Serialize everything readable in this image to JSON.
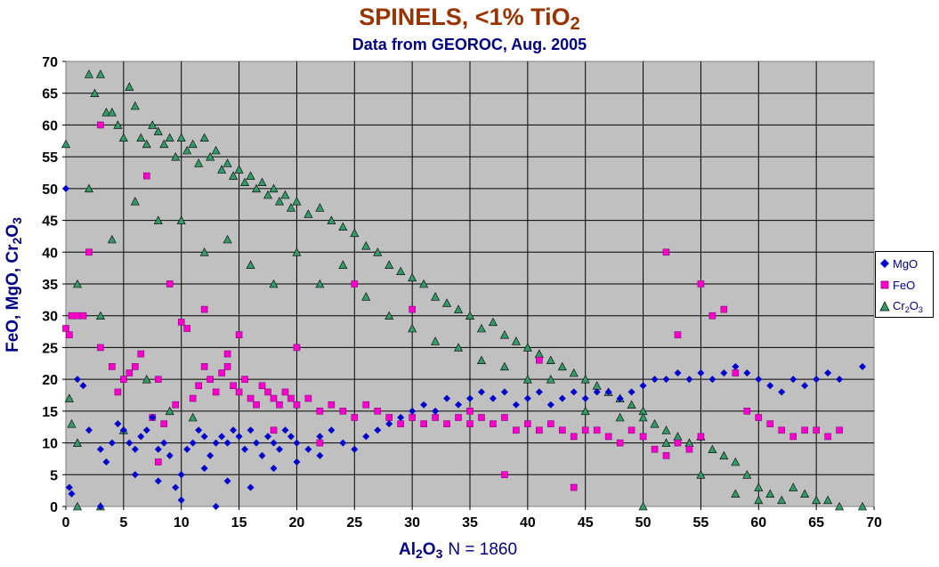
{
  "chart_data": {
    "type": "scatter",
    "title": "SPINELS, <1% TiO",
    "title_sub": "2",
    "subtitle": "Data from GEOROC, Aug. 2005",
    "xlabel_main": "Al",
    "xlabel_sub1": "2",
    "xlabel_o": "O",
    "xlabel_sub2": "3",
    "xlabel_n": "N = 1860",
    "ylabel_main": "FeO, MgO, Cr",
    "ylabel_sub1": "2",
    "ylabel_o": "O",
    "ylabel_sub2": "3",
    "xlim": [
      0,
      70
    ],
    "ylim": [
      0,
      70
    ],
    "x_ticks": [
      "0",
      "5",
      "10",
      "15",
      "20",
      "25",
      "30",
      "35",
      "40",
      "45",
      "50",
      "55",
      "60",
      "65",
      "70"
    ],
    "y_ticks": [
      "0",
      "5",
      "10",
      "15",
      "20",
      "25",
      "30",
      "35",
      "40",
      "45",
      "50",
      "55",
      "60",
      "65",
      "70"
    ],
    "grid": true,
    "plot_background": "#c0c0c0",
    "legend_position": "right",
    "series": [
      {
        "name": "MgO",
        "color": "#0000cc",
        "marker": "diamond",
        "points": [
          [
            0,
            50
          ],
          [
            0.3,
            3
          ],
          [
            0.5,
            2
          ],
          [
            1,
            20
          ],
          [
            1.5,
            19
          ],
          [
            2,
            12
          ],
          [
            3,
            9
          ],
          [
            3.5,
            7
          ],
          [
            4,
            10
          ],
          [
            4.5,
            13
          ],
          [
            5,
            12
          ],
          [
            5.5,
            10
          ],
          [
            6,
            9
          ],
          [
            6.5,
            11
          ],
          [
            7,
            12
          ],
          [
            7.5,
            14
          ],
          [
            8,
            9
          ],
          [
            8.5,
            10
          ],
          [
            9,
            8
          ],
          [
            9.5,
            3
          ],
          [
            10,
            1
          ],
          [
            10.5,
            9
          ],
          [
            11,
            10
          ],
          [
            11.5,
            12
          ],
          [
            12,
            11
          ],
          [
            12.5,
            8
          ],
          [
            13,
            10
          ],
          [
            13.5,
            11
          ],
          [
            14,
            10
          ],
          [
            14.5,
            12
          ],
          [
            15,
            11
          ],
          [
            15.5,
            9
          ],
          [
            16,
            12
          ],
          [
            16.5,
            10
          ],
          [
            17,
            8
          ],
          [
            17.5,
            11
          ],
          [
            18,
            10
          ],
          [
            18.5,
            9
          ],
          [
            19,
            12
          ],
          [
            19.5,
            11
          ],
          [
            20,
            10
          ],
          [
            21,
            9
          ],
          [
            22,
            11
          ],
          [
            23,
            12
          ],
          [
            24,
            10
          ],
          [
            25,
            9
          ],
          [
            26,
            11
          ],
          [
            27,
            12
          ],
          [
            28,
            13
          ],
          [
            29,
            14
          ],
          [
            30,
            15
          ],
          [
            31,
            16
          ],
          [
            32,
            15
          ],
          [
            33,
            17
          ],
          [
            34,
            16
          ],
          [
            35,
            17
          ],
          [
            36,
            18
          ],
          [
            37,
            17
          ],
          [
            38,
            18
          ],
          [
            39,
            16
          ],
          [
            40,
            17
          ],
          [
            41,
            18
          ],
          [
            42,
            16
          ],
          [
            43,
            17
          ],
          [
            44,
            18
          ],
          [
            45,
            17
          ],
          [
            46,
            18
          ],
          [
            47,
            18
          ],
          [
            48,
            17
          ],
          [
            49,
            18
          ],
          [
            50,
            19
          ],
          [
            51,
            20
          ],
          [
            52,
            20
          ],
          [
            53,
            21
          ],
          [
            54,
            20
          ],
          [
            55,
            21
          ],
          [
            56,
            20
          ],
          [
            57,
            21
          ],
          [
            58,
            22
          ],
          [
            59,
            21
          ],
          [
            60,
            20
          ],
          [
            61,
            19
          ],
          [
            62,
            18
          ],
          [
            63,
            20
          ],
          [
            64,
            19
          ],
          [
            65,
            20
          ],
          [
            66,
            21
          ],
          [
            67,
            20
          ],
          [
            69,
            22
          ],
          [
            10,
            5
          ],
          [
            12,
            6
          ],
          [
            14,
            4
          ],
          [
            16,
            3
          ],
          [
            18,
            6
          ],
          [
            20,
            7
          ],
          [
            8,
            4
          ],
          [
            6,
            5
          ],
          [
            22,
            8
          ],
          [
            13,
            0
          ],
          [
            3,
            0
          ]
        ]
      },
      {
        "name": "FeO",
        "color": "#ff00cc",
        "marker": "square",
        "points": [
          [
            0,
            28
          ],
          [
            0.3,
            27
          ],
          [
            0.5,
            30
          ],
          [
            1,
            30
          ],
          [
            1.5,
            30
          ],
          [
            2,
            40
          ],
          [
            3,
            60
          ],
          [
            3,
            25
          ],
          [
            4,
            22
          ],
          [
            4.5,
            18
          ],
          [
            5,
            20
          ],
          [
            5.5,
            21
          ],
          [
            6,
            22
          ],
          [
            6.5,
            24
          ],
          [
            7,
            52
          ],
          [
            7.5,
            14
          ],
          [
            8,
            20
          ],
          [
            8.5,
            13
          ],
          [
            9,
            35
          ],
          [
            9.5,
            16
          ],
          [
            10,
            29
          ],
          [
            10.5,
            28
          ],
          [
            11,
            17
          ],
          [
            11.5,
            19
          ],
          [
            12,
            22
          ],
          [
            12.5,
            20
          ],
          [
            13,
            18
          ],
          [
            13.5,
            21
          ],
          [
            14,
            22
          ],
          [
            14.5,
            19
          ],
          [
            15,
            18
          ],
          [
            15.5,
            20
          ],
          [
            16,
            17
          ],
          [
            16.5,
            16
          ],
          [
            17,
            19
          ],
          [
            17.5,
            18
          ],
          [
            18,
            17
          ],
          [
            18.5,
            16
          ],
          [
            19,
            18
          ],
          [
            19.5,
            17
          ],
          [
            20,
            16
          ],
          [
            21,
            17
          ],
          [
            22,
            15
          ],
          [
            23,
            16
          ],
          [
            24,
            15
          ],
          [
            25,
            14
          ],
          [
            26,
            16
          ],
          [
            27,
            15
          ],
          [
            28,
            14
          ],
          [
            29,
            13
          ],
          [
            30,
            14
          ],
          [
            31,
            13
          ],
          [
            32,
            14
          ],
          [
            33,
            13
          ],
          [
            34,
            14
          ],
          [
            35,
            13
          ],
          [
            36,
            14
          ],
          [
            37,
            13
          ],
          [
            38,
            14
          ],
          [
            39,
            12
          ],
          [
            40,
            13
          ],
          [
            41,
            12
          ],
          [
            42,
            13
          ],
          [
            43,
            12
          ],
          [
            44,
            11
          ],
          [
            45,
            12
          ],
          [
            46,
            12
          ],
          [
            47,
            11
          ],
          [
            48,
            10
          ],
          [
            49,
            12
          ],
          [
            50,
            11
          ],
          [
            51,
            9
          ],
          [
            52,
            8
          ],
          [
            53,
            10
          ],
          [
            54,
            9
          ],
          [
            55,
            11
          ],
          [
            56,
            30
          ],
          [
            57,
            31
          ],
          [
            58,
            21
          ],
          [
            59,
            15
          ],
          [
            60,
            14
          ],
          [
            61,
            13
          ],
          [
            62,
            12
          ],
          [
            63,
            11
          ],
          [
            64,
            12
          ],
          [
            65,
            12
          ],
          [
            66,
            11
          ],
          [
            67,
            12
          ],
          [
            52,
            40
          ],
          [
            55,
            35
          ],
          [
            53,
            27
          ],
          [
            25,
            35
          ],
          [
            30,
            31
          ],
          [
            38,
            5
          ],
          [
            44,
            3
          ],
          [
            41,
            23
          ],
          [
            35,
            15
          ],
          [
            20,
            25
          ],
          [
            15,
            27
          ],
          [
            18,
            12
          ],
          [
            22,
            10
          ],
          [
            8,
            7
          ],
          [
            12,
            31
          ],
          [
            14,
            24
          ]
        ]
      },
      {
        "name": "Cr2O3",
        "legend_main": "Cr",
        "legend_sub1": "2",
        "legend_o": "O",
        "legend_sub2": "3",
        "color": "#339966",
        "marker": "triangle",
        "points": [
          [
            0,
            57
          ],
          [
            0.3,
            17
          ],
          [
            0.5,
            13
          ],
          [
            1,
            10
          ],
          [
            2,
            68
          ],
          [
            2.5,
            65
          ],
          [
            3,
            68
          ],
          [
            3.5,
            62
          ],
          [
            4,
            62
          ],
          [
            4.5,
            60
          ],
          [
            5,
            58
          ],
          [
            5.5,
            66
          ],
          [
            6,
            63
          ],
          [
            6.5,
            58
          ],
          [
            7,
            57
          ],
          [
            7.5,
            60
          ],
          [
            8,
            59
          ],
          [
            8.5,
            57
          ],
          [
            9,
            58
          ],
          [
            9.5,
            55
          ],
          [
            10,
            58
          ],
          [
            10.5,
            56
          ],
          [
            11,
            57
          ],
          [
            11.5,
            54
          ],
          [
            12,
            58
          ],
          [
            12.5,
            55
          ],
          [
            13,
            56
          ],
          [
            13.5,
            53
          ],
          [
            14,
            54
          ],
          [
            14.5,
            52
          ],
          [
            15,
            53
          ],
          [
            15.5,
            51
          ],
          [
            16,
            52
          ],
          [
            16.5,
            50
          ],
          [
            17,
            51
          ],
          [
            17.5,
            49
          ],
          [
            18,
            50
          ],
          [
            18.5,
            48
          ],
          [
            19,
            49
          ],
          [
            19.5,
            47
          ],
          [
            20,
            48
          ],
          [
            21,
            46
          ],
          [
            22,
            47
          ],
          [
            23,
            45
          ],
          [
            24,
            44
          ],
          [
            25,
            43
          ],
          [
            26,
            41
          ],
          [
            27,
            40
          ],
          [
            28,
            38
          ],
          [
            29,
            37
          ],
          [
            30,
            36
          ],
          [
            31,
            35
          ],
          [
            32,
            33
          ],
          [
            33,
            32
          ],
          [
            34,
            31
          ],
          [
            35,
            30
          ],
          [
            36,
            28
          ],
          [
            37,
            29
          ],
          [
            38,
            27
          ],
          [
            39,
            26
          ],
          [
            40,
            25
          ],
          [
            41,
            24
          ],
          [
            42,
            23
          ],
          [
            43,
            22
          ],
          [
            44,
            21
          ],
          [
            45,
            20
          ],
          [
            46,
            19
          ],
          [
            47,
            18
          ],
          [
            48,
            17
          ],
          [
            49,
            16
          ],
          [
            50,
            15
          ],
          [
            51,
            13
          ],
          [
            52,
            12
          ],
          [
            53,
            11
          ],
          [
            54,
            10
          ],
          [
            55,
            11
          ],
          [
            56,
            9
          ],
          [
            57,
            8
          ],
          [
            58,
            7
          ],
          [
            59,
            5
          ],
          [
            60,
            3
          ],
          [
            61,
            2
          ],
          [
            62,
            1
          ],
          [
            63,
            3
          ],
          [
            64,
            2
          ],
          [
            65,
            1
          ],
          [
            66,
            1
          ],
          [
            67,
            0
          ],
          [
            69,
            0
          ],
          [
            10,
            45
          ],
          [
            12,
            40
          ],
          [
            14,
            42
          ],
          [
            16,
            38
          ],
          [
            18,
            35
          ],
          [
            20,
            40
          ],
          [
            22,
            35
          ],
          [
            24,
            38
          ],
          [
            26,
            33
          ],
          [
            28,
            30
          ],
          [
            30,
            28
          ],
          [
            32,
            26
          ],
          [
            34,
            25
          ],
          [
            36,
            23
          ],
          [
            38,
            22
          ],
          [
            40,
            20
          ],
          [
            42,
            20
          ],
          [
            8,
            45
          ],
          [
            6,
            48
          ],
          [
            4,
            42
          ],
          [
            2,
            50
          ],
          [
            1,
            35
          ],
          [
            3,
            30
          ],
          [
            5,
            12
          ],
          [
            7,
            20
          ],
          [
            9,
            15
          ],
          [
            11,
            14
          ],
          [
            45,
            15
          ],
          [
            48,
            14
          ],
          [
            50,
            14
          ],
          [
            52,
            10
          ],
          [
            55,
            5
          ],
          [
            58,
            2
          ],
          [
            60,
            1
          ],
          [
            50,
            0
          ],
          [
            1,
            0
          ],
          [
            3,
            0
          ]
        ]
      }
    ]
  }
}
